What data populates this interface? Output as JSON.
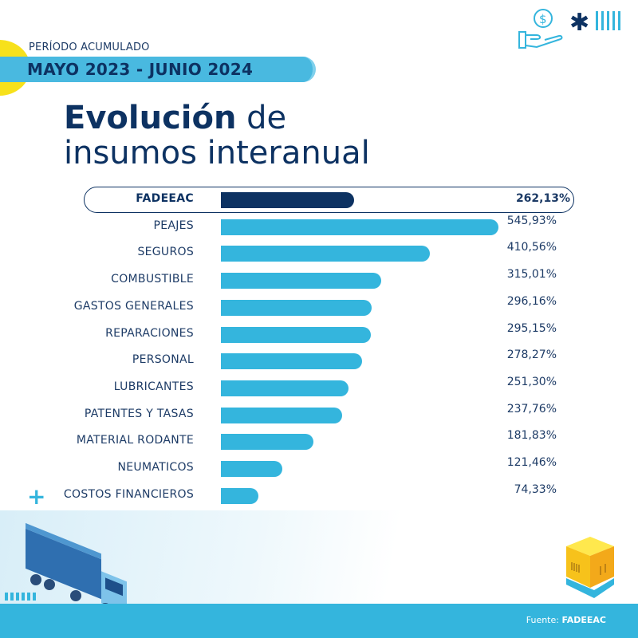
{
  "header": {
    "period_label": "PERÍODO ACUMULADO",
    "period": "MAYO 2023 - JUNIO 2024",
    "title_bold": "Evolución",
    "title_rest1": " de",
    "title_line2": "insumos interanual"
  },
  "icons": [
    "hand-coin-icon",
    "asterisk-logo-icon",
    "truck-illustration",
    "box-pallet-illustration",
    "plus-icon"
  ],
  "footer": {
    "source_label": "Fuente: ",
    "source": "FADEEAC"
  },
  "colors": {
    "navy": "#0d3262",
    "bar": "#34b5dd",
    "highlight_bar": "#0d3262",
    "accent_yellow": "#f7e11b"
  },
  "chart_data": {
    "type": "bar",
    "orientation": "horizontal",
    "categories": [
      "FADEEAC",
      "PEAJES",
      "SEGUROS",
      "COMBUSTIBLE",
      "GASTOS GENERALES",
      "REPARACIONES",
      "PERSONAL",
      "LUBRICANTES",
      "PATENTES Y TASAS",
      "MATERIAL RODANTE",
      "NEUMATICOS",
      "COSTOS FINANCIEROS"
    ],
    "values": [
      262.13,
      545.93,
      410.56,
      315.01,
      296.16,
      295.15,
      278.27,
      251.3,
      237.76,
      181.83,
      121.46,
      74.33
    ],
    "labels": [
      "262,13%",
      "545,93%",
      "410,56%",
      "315,01%",
      "296,16%",
      "295,15%",
      "278,27%",
      "251,30%",
      "237,76%",
      "181,83%",
      "121,46%",
      "74,33%"
    ],
    "highlighted": "FADEEAC",
    "unit": "%",
    "grid": false
  }
}
